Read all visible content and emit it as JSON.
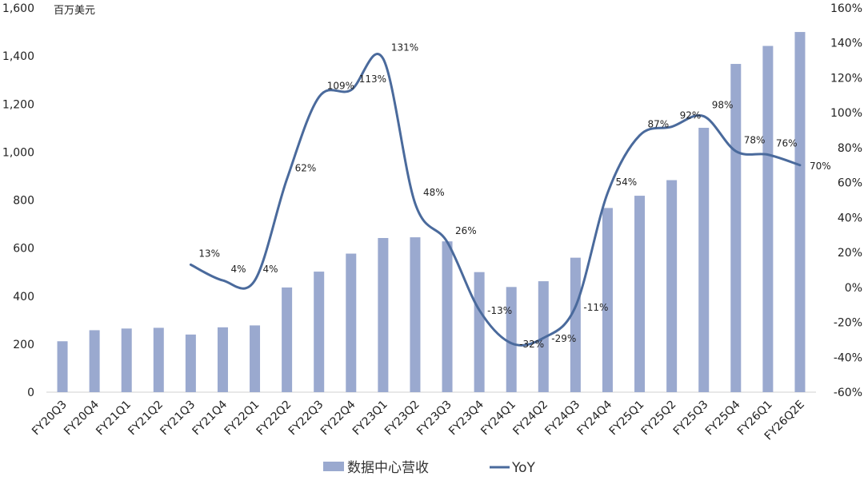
{
  "chart_data": {
    "type": "bar",
    "categories": [
      "FY20Q3",
      "FY20Q4",
      "FY21Q1",
      "FY21Q2",
      "FY21Q3",
      "FY21Q4",
      "FY22Q1",
      "FY22Q2",
      "FY22Q3",
      "FY22Q4",
      "FY23Q1",
      "FY23Q2",
      "FY23Q3",
      "FY23Q4",
      "FY24Q1",
      "FY24Q2",
      "FY24Q3",
      "FY24Q4",
      "FY25Q1",
      "FY25Q2",
      "FY25Q3",
      "FY25Q4",
      "FY26Q1",
      "FY26Q2E"
    ],
    "unit_label": "百万美元",
    "y_left": {
      "ylim": [
        0,
        1600
      ],
      "ticks": [
        0,
        200,
        400,
        600,
        800,
        1000,
        1200,
        1400,
        1600
      ],
      "tick_labels": [
        "0",
        "200",
        "400",
        "600",
        "800",
        "1,000",
        "1,200",
        "1,400",
        "1,600"
      ]
    },
    "y_right": {
      "ylim": [
        -60,
        160
      ],
      "ticks": [
        -60,
        -40,
        -20,
        0,
        20,
        40,
        60,
        80,
        100,
        120,
        140,
        160
      ],
      "tick_labels": [
        "-60%",
        "-40%",
        "-20%",
        "0%",
        "20%",
        "40%",
        "60%",
        "80%",
        "100%",
        "120%",
        "140%",
        "160%"
      ]
    },
    "series": [
      {
        "name": "数据中心营收",
        "kind": "bar",
        "axis": "left",
        "color": "#9aa9cf",
        "values": [
          212,
          258,
          265,
          268,
          240,
          270,
          278,
          436,
          502,
          577,
          642,
          645,
          628,
          500,
          438,
          462,
          560,
          767,
          818,
          883,
          1101,
          1367,
          1442,
          1500
        ]
      },
      {
        "name": "YoY",
        "kind": "line",
        "axis": "right",
        "color": "#4a6a9c",
        "values": [
          null,
          null,
          null,
          null,
          13,
          4,
          4,
          62,
          109,
          113,
          131,
          48,
          26,
          -13,
          -32,
          -29,
          -11,
          54,
          87,
          92,
          98,
          78,
          76,
          70
        ],
        "labels": [
          null,
          null,
          null,
          null,
          "13%",
          "4%",
          "4%",
          "62%",
          "109%",
          "113%",
          "131%",
          "48%",
          "26%",
          "-13%",
          "-32%",
          "-29%",
          "-11%",
          "54%",
          "87%",
          "92%",
          "98%",
          "78%",
          "76%",
          "70%"
        ]
      }
    ],
    "legend": {
      "placement": "bottom",
      "items": [
        "数据中心营收",
        "YoY"
      ]
    }
  }
}
